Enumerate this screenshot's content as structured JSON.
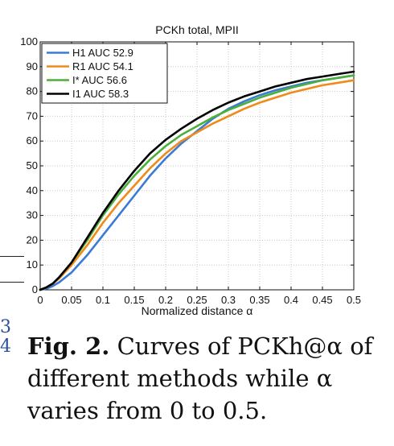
{
  "chart_data": {
    "type": "line",
    "title": "PCKh total, MPII",
    "xlabel": "Normalized distance α",
    "ylabel": "",
    "xlim": [
      0,
      0.5
    ],
    "ylim": [
      0,
      100
    ],
    "x_ticks": [
      0,
      0.05,
      0.1,
      0.15,
      0.2,
      0.25,
      0.3,
      0.35,
      0.4,
      0.45,
      0.5
    ],
    "x_tick_labels": [
      "0",
      "0.05",
      "0.1",
      "0.15",
      "0.2",
      "0.25",
      "0.3",
      "0.35",
      "0.4",
      "0.45",
      "0.5"
    ],
    "y_ticks": [
      0,
      10,
      20,
      30,
      40,
      50,
      60,
      70,
      80,
      90,
      100
    ],
    "y_tick_labels": [
      "0",
      "10",
      "20",
      "30",
      "40",
      "50",
      "60",
      "70",
      "80",
      "90",
      "100"
    ],
    "grid": true,
    "legend_position": "top-left",
    "x": [
      0,
      0.01,
      0.02,
      0.03,
      0.05,
      0.075,
      0.1,
      0.125,
      0.15,
      0.175,
      0.2,
      0.225,
      0.25,
      0.275,
      0.3,
      0.325,
      0.35,
      0.375,
      0.4,
      0.425,
      0.45,
      0.475,
      0.5
    ],
    "series": [
      {
        "name": "H1 AUC 52.9",
        "color": "#3a7bd5",
        "values": [
          0,
          0.5,
          1.5,
          3,
          7,
          14,
          22,
          30,
          38,
          46,
          53,
          59,
          64,
          69,
          73,
          76,
          78.5,
          80.5,
          82,
          83.5,
          84.5,
          85.5,
          86.5
        ]
      },
      {
        "name": "R1 AUC 54.1",
        "color": "#f08a1a",
        "values": [
          0,
          1,
          2.5,
          4.5,
          10,
          18,
          27,
          35,
          42,
          49,
          55,
          60,
          63.5,
          67,
          70,
          73,
          75.5,
          77.5,
          79.5,
          81,
          82.5,
          83.5,
          84.5
        ]
      },
      {
        "name": "I*  AUC 56.6",
        "color": "#4caf3a",
        "values": [
          0,
          1,
          2.5,
          5,
          11,
          20,
          30,
          38.5,
          46,
          52.5,
          58,
          62.5,
          66,
          69.5,
          72.5,
          75,
          77.5,
          79.5,
          81.5,
          83,
          84.5,
          85.5,
          86.5
        ]
      },
      {
        "name": "I1  AUC 58.3",
        "color": "#000000",
        "values": [
          0,
          1,
          2.5,
          5,
          11,
          21,
          31,
          40,
          48,
          55,
          60.5,
          65,
          69,
          72.5,
          75.5,
          78,
          80,
          82,
          83.5,
          85,
          86,
          87,
          88
        ]
      }
    ]
  },
  "caption": {
    "fig_label": "Fig. 2.",
    "text": " Curves of PCKh@α of different methods while α varies from 0 to 0.5."
  }
}
